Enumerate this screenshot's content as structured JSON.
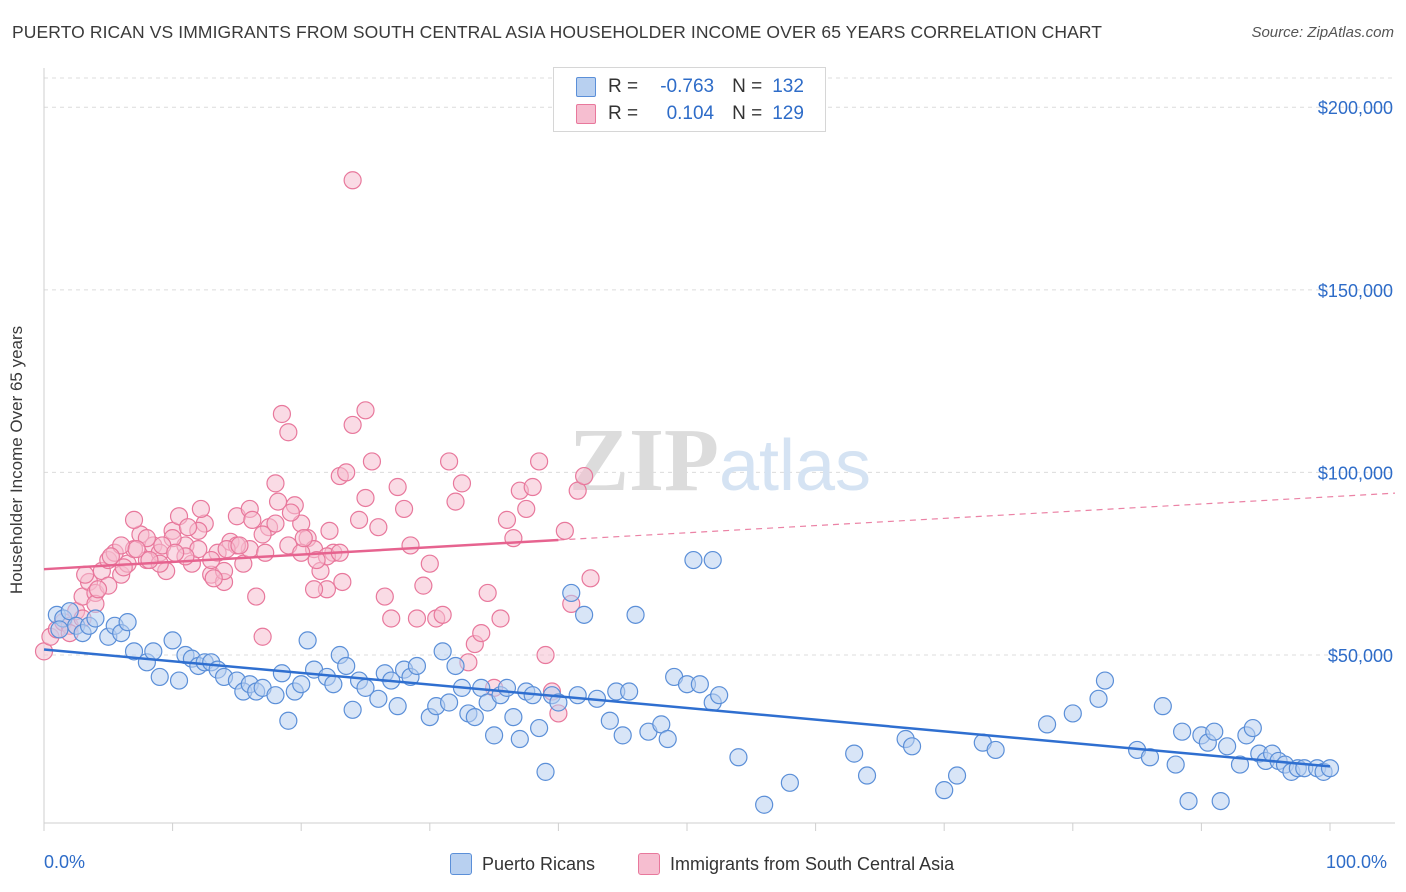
{
  "title": "PUERTO RICAN VS IMMIGRANTS FROM SOUTH CENTRAL ASIA HOUSEHOLDER INCOME OVER 65 YEARS CORRELATION CHART",
  "source": "Source: ZipAtlas.com",
  "legend": {
    "row1": {
      "r_label": "R =",
      "r_value": "-0.763",
      "n_label": "N =",
      "n_value": "132"
    },
    "row2": {
      "r_label": "R =",
      "r_value": "0.104",
      "n_label": "N =",
      "n_value": "129"
    }
  },
  "colors": {
    "blue": "#5b8fd8",
    "blue_fill": "#b8d0f0",
    "pink": "#e8789c",
    "pink_fill": "#f6bed0",
    "axis_text": "#2e6cc8"
  },
  "chart_data": {
    "type": "scatter",
    "xlabel": "",
    "ylabel": "Householder Income Over 65 years",
    "x_ticks": [
      "0.0%",
      "100.0%"
    ],
    "y_ticks": [
      "$50,000",
      "$100,000",
      "$150,000",
      "$200,000"
    ],
    "xlim": [
      0,
      100
    ],
    "ylim": [
      4000,
      208000
    ],
    "watermark": "ZIPatlas",
    "series": [
      {
        "name": "Puerto Ricans",
        "trend": {
          "x": [
            0,
            100
          ],
          "y": [
            51500,
            19500
          ]
        },
        "points": [
          [
            1,
            61000
          ],
          [
            1.5,
            60000
          ],
          [
            2,
            62000
          ],
          [
            2.5,
            58000
          ],
          [
            1.2,
            57000
          ],
          [
            3,
            56000
          ],
          [
            3.5,
            58000
          ],
          [
            4,
            60000
          ],
          [
            5,
            55000
          ],
          [
            5.5,
            58000
          ],
          [
            6,
            56000
          ],
          [
            6.5,
            59000
          ],
          [
            7,
            51000
          ],
          [
            8,
            48000
          ],
          [
            8.5,
            51000
          ],
          [
            9,
            44000
          ],
          [
            10,
            54000
          ],
          [
            10.5,
            43000
          ],
          [
            11,
            50000
          ],
          [
            11.5,
            49000
          ],
          [
            12,
            47000
          ],
          [
            12.5,
            48000
          ],
          [
            13,
            48000
          ],
          [
            13.5,
            46000
          ],
          [
            14,
            44000
          ],
          [
            15,
            43000
          ],
          [
            15.5,
            40000
          ],
          [
            16,
            42000
          ],
          [
            16.5,
            40000
          ],
          [
            17,
            41000
          ],
          [
            18,
            39000
          ],
          [
            18.5,
            45000
          ],
          [
            19,
            32000
          ],
          [
            19.5,
            40000
          ],
          [
            20,
            42000
          ],
          [
            20.5,
            54000
          ],
          [
            21,
            46000
          ],
          [
            22,
            44000
          ],
          [
            22.5,
            42000
          ],
          [
            23,
            50000
          ],
          [
            23.5,
            47000
          ],
          [
            24,
            35000
          ],
          [
            24.5,
            43000
          ],
          [
            25,
            41000
          ],
          [
            26,
            38000
          ],
          [
            26.5,
            45000
          ],
          [
            27,
            43000
          ],
          [
            27.5,
            36000
          ],
          [
            28,
            46000
          ],
          [
            28.5,
            44000
          ],
          [
            29,
            47000
          ],
          [
            30,
            33000
          ],
          [
            30.5,
            36000
          ],
          [
            31,
            51000
          ],
          [
            31.5,
            37000
          ],
          [
            32,
            47000
          ],
          [
            32.5,
            41000
          ],
          [
            33,
            34000
          ],
          [
            33.5,
            33000
          ],
          [
            34,
            41000
          ],
          [
            34.5,
            37000
          ],
          [
            35,
            28000
          ],
          [
            35.5,
            39000
          ],
          [
            36,
            41000
          ],
          [
            36.5,
            33000
          ],
          [
            37,
            27000
          ],
          [
            37.5,
            40000
          ],
          [
            38,
            39000
          ],
          [
            38.5,
            30000
          ],
          [
            39,
            18000
          ],
          [
            39.5,
            39000
          ],
          [
            40,
            37000
          ],
          [
            41,
            67000
          ],
          [
            41.5,
            39000
          ],
          [
            42,
            61000
          ],
          [
            43,
            38000
          ],
          [
            44,
            32000
          ],
          [
            44.5,
            40000
          ],
          [
            45,
            28000
          ],
          [
            45.5,
            40000
          ],
          [
            46,
            61000
          ],
          [
            47,
            29000
          ],
          [
            48,
            31000
          ],
          [
            48.5,
            27000
          ],
          [
            49,
            44000
          ],
          [
            50,
            42000
          ],
          [
            51,
            42000
          ],
          [
            52,
            37000
          ],
          [
            52.5,
            39000
          ],
          [
            50.5,
            76000
          ],
          [
            52,
            76000
          ],
          [
            54,
            22000
          ],
          [
            56,
            9000
          ],
          [
            58,
            15000
          ],
          [
            63,
            23000
          ],
          [
            64,
            17000
          ],
          [
            67,
            27000
          ],
          [
            67.5,
            25000
          ],
          [
            70,
            13000
          ],
          [
            71,
            17000
          ],
          [
            73,
            26000
          ],
          [
            74,
            24000
          ],
          [
            78,
            31000
          ],
          [
            80,
            34000
          ],
          [
            82,
            38000
          ],
          [
            82.5,
            43000
          ],
          [
            85,
            24000
          ],
          [
            86,
            22000
          ],
          [
            87,
            36000
          ],
          [
            88,
            20000
          ],
          [
            88.5,
            29000
          ],
          [
            89,
            10000
          ],
          [
            90,
            28000
          ],
          [
            90.5,
            26000
          ],
          [
            91,
            29000
          ],
          [
            91.5,
            10000
          ],
          [
            92,
            25000
          ],
          [
            93,
            20000
          ],
          [
            93.5,
            28000
          ],
          [
            94,
            30000
          ],
          [
            94.5,
            23000
          ],
          [
            95,
            21000
          ],
          [
            95.5,
            23000
          ],
          [
            96,
            21000
          ],
          [
            96.5,
            20000
          ],
          [
            97,
            18000
          ],
          [
            97.5,
            19000
          ],
          [
            98,
            19000
          ],
          [
            99,
            19000
          ],
          [
            99.5,
            18000
          ],
          [
            100,
            19000
          ]
        ]
      },
      {
        "name": "Immigrants from South Central Asia",
        "trend": {
          "x": [
            0,
            40
          ],
          "y": [
            73500,
            81500
          ]
        },
        "trend_dashed": {
          "x": [
            40,
            100
          ],
          "y": [
            81500,
            93500
          ]
        },
        "points": [
          [
            0,
            51000
          ],
          [
            0.5,
            55000
          ],
          [
            1,
            57000
          ],
          [
            1.5,
            59000
          ],
          [
            2,
            58000
          ],
          [
            2.5,
            62000
          ],
          [
            3,
            66000
          ],
          [
            3.5,
            70000
          ],
          [
            4,
            67000
          ],
          [
            4.5,
            73000
          ],
          [
            5,
            76000
          ],
          [
            5.5,
            78000
          ],
          [
            6,
            72000
          ],
          [
            6.5,
            75000
          ],
          [
            7,
            79000
          ],
          [
            7.5,
            83000
          ],
          [
            8,
            76000
          ],
          [
            8.5,
            80000
          ],
          [
            9,
            78000
          ],
          [
            9.5,
            73000
          ],
          [
            10,
            84000
          ],
          [
            10.5,
            88000
          ],
          [
            11,
            80000
          ],
          [
            11.5,
            75000
          ],
          [
            12,
            79000
          ],
          [
            12.5,
            86000
          ],
          [
            13,
            72000
          ],
          [
            13.5,
            78000
          ],
          [
            14,
            70000
          ],
          [
            14.5,
            81000
          ],
          [
            15,
            88000
          ],
          [
            15.5,
            75000
          ],
          [
            16,
            79000
          ],
          [
            16.5,
            66000
          ],
          [
            17,
            55000
          ],
          [
            17.5,
            85000
          ],
          [
            18,
            97000
          ],
          [
            18.5,
            116000
          ],
          [
            19,
            111000
          ],
          [
            19.5,
            91000
          ],
          [
            20,
            86000
          ],
          [
            20.5,
            82000
          ],
          [
            21,
            79000
          ],
          [
            21.5,
            73000
          ],
          [
            22,
            68000
          ],
          [
            22.5,
            78000
          ],
          [
            23,
            99000
          ],
          [
            23.5,
            100000
          ],
          [
            24,
            113000
          ],
          [
            24.5,
            87000
          ],
          [
            25,
            93000
          ],
          [
            25.5,
            103000
          ],
          [
            26,
            85000
          ],
          [
            26.5,
            66000
          ],
          [
            27,
            60000
          ],
          [
            27.5,
            96000
          ],
          [
            28,
            90000
          ],
          [
            28.5,
            80000
          ],
          [
            29,
            60000
          ],
          [
            29.5,
            69000
          ],
          [
            30,
            75000
          ],
          [
            30.5,
            60000
          ],
          [
            31,
            61000
          ],
          [
            31.5,
            103000
          ],
          [
            32,
            92000
          ],
          [
            32.5,
            97000
          ],
          [
            33,
            48000
          ],
          [
            33.5,
            53000
          ],
          [
            34,
            56000
          ],
          [
            34.5,
            67000
          ],
          [
            35,
            41000
          ],
          [
            35.5,
            60000
          ],
          [
            36,
            87000
          ],
          [
            36.5,
            82000
          ],
          [
            37,
            95000
          ],
          [
            37.5,
            90000
          ],
          [
            38,
            96000
          ],
          [
            38.5,
            103000
          ],
          [
            39,
            50000
          ],
          [
            39.5,
            40000
          ],
          [
            40,
            34000
          ],
          [
            40.5,
            84000
          ],
          [
            41,
            64000
          ],
          [
            41.5,
            95000
          ],
          [
            42,
            99000
          ],
          [
            42.5,
            71000
          ],
          [
            24,
            180000
          ],
          [
            25,
            117000
          ],
          [
            6,
            80000
          ],
          [
            7,
            87000
          ],
          [
            8,
            82000
          ],
          [
            9,
            75000
          ],
          [
            10,
            82000
          ],
          [
            11,
            77000
          ],
          [
            12,
            84000
          ],
          [
            13,
            76000
          ],
          [
            14,
            73000
          ],
          [
            15,
            80000
          ],
          [
            16,
            90000
          ],
          [
            17,
            83000
          ],
          [
            18,
            86000
          ],
          [
            19,
            80000
          ],
          [
            20,
            78000
          ],
          [
            21,
            68000
          ],
          [
            22,
            77000
          ],
          [
            23,
            78000
          ],
          [
            2,
            56000
          ],
          [
            3,
            60000
          ],
          [
            4,
            64000
          ],
          [
            5,
            69000
          ],
          [
            3.2,
            72000
          ],
          [
            4.2,
            68000
          ],
          [
            5.2,
            77000
          ],
          [
            6.2,
            74000
          ],
          [
            7.2,
            79000
          ],
          [
            8.2,
            76000
          ],
          [
            9.2,
            80000
          ],
          [
            10.2,
            78000
          ],
          [
            11.2,
            85000
          ],
          [
            12.2,
            90000
          ],
          [
            13.2,
            71000
          ],
          [
            14.2,
            79000
          ],
          [
            15.2,
            80000
          ],
          [
            16.2,
            87000
          ],
          [
            17.2,
            78000
          ],
          [
            18.2,
            92000
          ],
          [
            19.2,
            89000
          ],
          [
            20.2,
            82000
          ],
          [
            21.2,
            76000
          ],
          [
            22.2,
            84000
          ],
          [
            23.2,
            70000
          ]
        ]
      }
    ]
  }
}
